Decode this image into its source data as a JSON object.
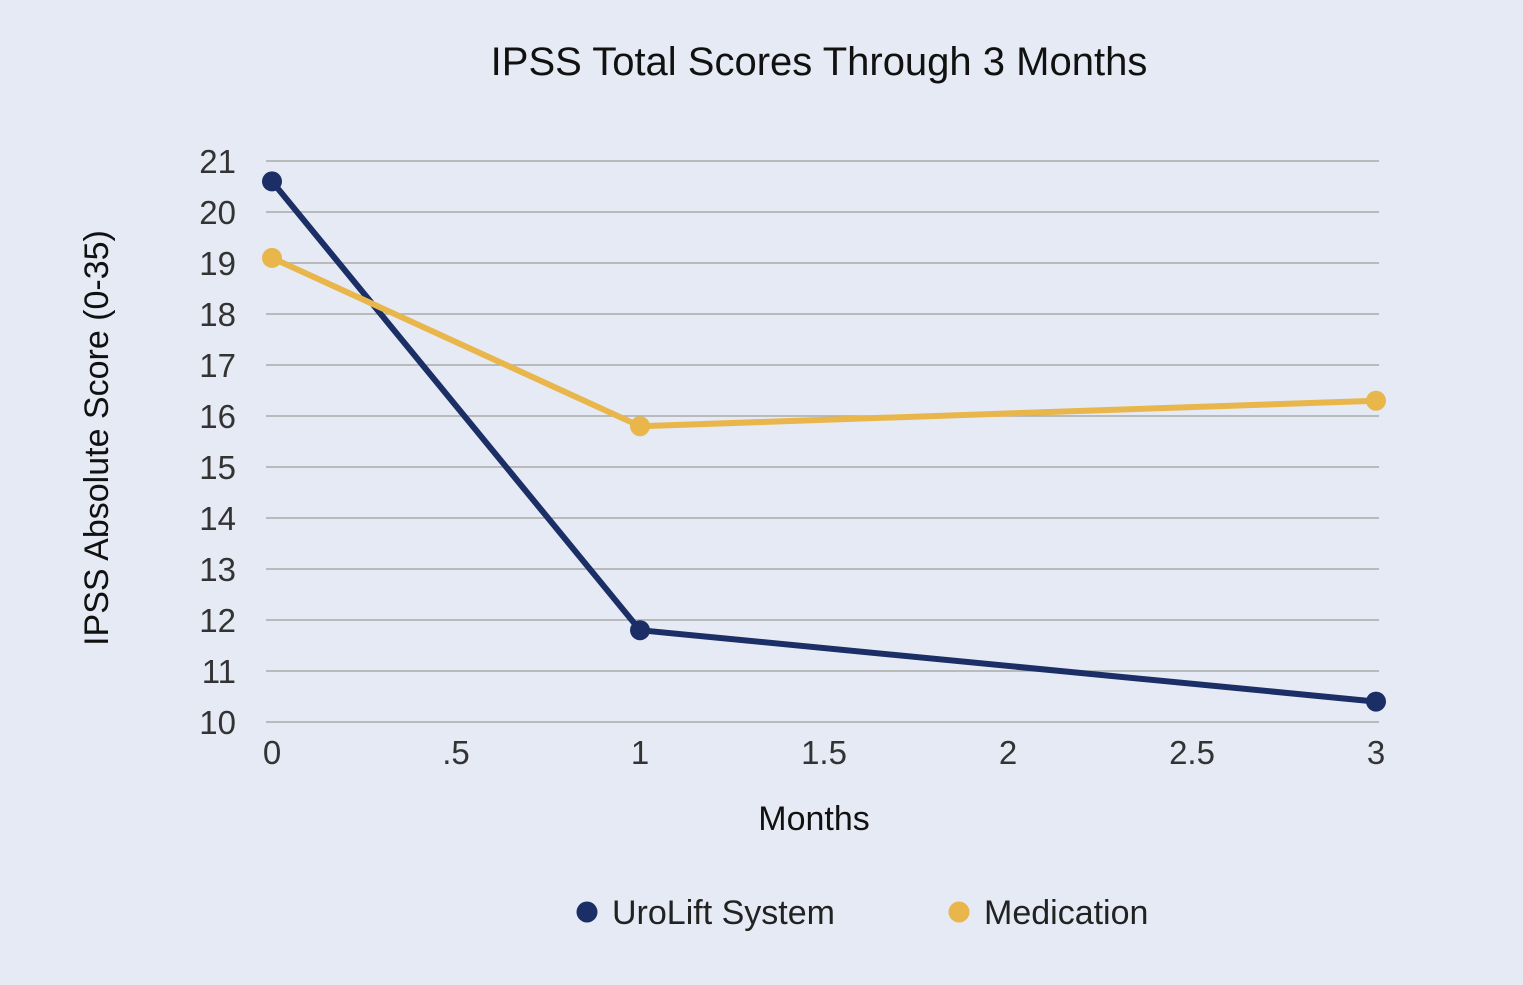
{
  "chart_data": {
    "type": "line",
    "title": "IPSS Total Scores Through 3 Months",
    "xlabel": "Months",
    "ylabel": "IPSS Absolute Score (0-35)",
    "xlim": [
      0,
      3
    ],
    "ylim": [
      10,
      21
    ],
    "x_ticks": [
      0,
      0.5,
      1,
      1.5,
      2,
      2.5,
      3
    ],
    "x_tick_labels": [
      "0",
      ".5",
      "1",
      "1.5",
      "2",
      "2.5",
      "3"
    ],
    "y_ticks": [
      10,
      11,
      12,
      13,
      14,
      15,
      16,
      17,
      18,
      19,
      20,
      21
    ],
    "y_tick_labels": [
      "10",
      "11",
      "12",
      "13",
      "14",
      "15",
      "16",
      "17",
      "18",
      "19",
      "20",
      "21"
    ],
    "grid": true,
    "legend_position": "bottom",
    "series": [
      {
        "name": "UroLift System",
        "color": "#1b2f66",
        "x": [
          0,
          1,
          3
        ],
        "y": [
          20.6,
          11.8,
          10.4
        ]
      },
      {
        "name": "Medication",
        "color": "#e8b64a",
        "x": [
          0,
          1,
          3
        ],
        "y": [
          19.1,
          15.8,
          16.3
        ]
      }
    ]
  }
}
